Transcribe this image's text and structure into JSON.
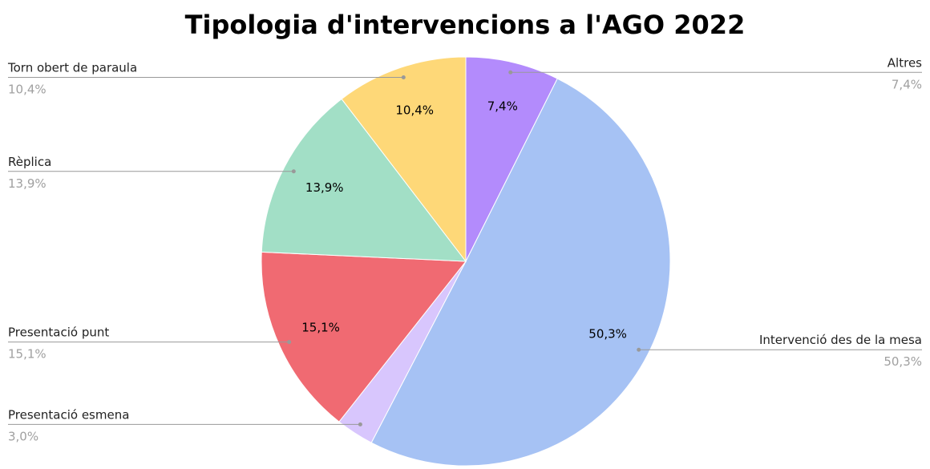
{
  "chart_data": {
    "type": "pie",
    "title": "Tipologia d'intervencions a l'AGO 2022",
    "categories": [
      "Altres",
      "Intervenció des de la mesa",
      "Presentació esmena",
      "Presentació punt",
      "Rèplica",
      "Torn obert de paraula"
    ],
    "values": [
      7.4,
      50.3,
      3.0,
      15.1,
      13.9,
      10.4
    ],
    "value_labels": [
      "7,4%",
      "50,3%",
      "3,0%",
      "15,1%",
      "13,9%",
      "10,4%"
    ],
    "colors": [
      "#b38bfc",
      "#a6c2f4",
      "#d8c6fd",
      "#f06a72",
      "#a2dfc6",
      "#fed878"
    ]
  }
}
